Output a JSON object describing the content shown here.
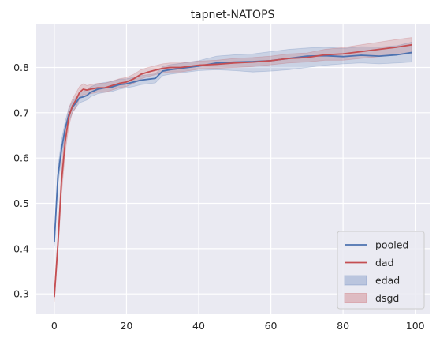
{
  "chart_data": {
    "type": "line",
    "title": "tapnet-NATOPS",
    "xlabel": "",
    "ylabel": "",
    "xlim": [
      -5,
      104
    ],
    "ylim": [
      0.255,
      0.895
    ],
    "x_ticks": [
      0,
      20,
      40,
      60,
      80,
      100
    ],
    "x_tick_labels": [
      "0",
      "20",
      "40",
      "60",
      "80",
      "100"
    ],
    "y_ticks": [
      0.3,
      0.4,
      0.5,
      0.6,
      0.7,
      0.8
    ],
    "y_tick_labels": [
      "0.3",
      "0.4",
      "0.5",
      "0.6",
      "0.7",
      "0.8"
    ],
    "grid": true,
    "legend_position": "lower-right",
    "background": "#eaeaf2",
    "series": [
      {
        "name": "pooled",
        "color": "#4c72b0",
        "x": [
          0,
          1,
          2,
          3,
          4,
          5,
          6,
          7,
          8,
          9,
          10,
          12,
          14,
          16,
          18,
          20,
          22,
          24,
          26,
          28,
          30,
          32,
          35,
          40,
          45,
          50,
          55,
          60,
          65,
          70,
          75,
          80,
          85,
          90,
          95,
          99
        ],
        "values": [
          0.415,
          0.56,
          0.62,
          0.665,
          0.695,
          0.712,
          0.722,
          0.733,
          0.735,
          0.738,
          0.745,
          0.752,
          0.755,
          0.757,
          0.762,
          0.764,
          0.768,
          0.772,
          0.774,
          0.776,
          0.792,
          0.795,
          0.798,
          0.803,
          0.81,
          0.812,
          0.813,
          0.815,
          0.82,
          0.825,
          0.826,
          0.824,
          0.827,
          0.825,
          0.828,
          0.833
        ]
      },
      {
        "name": "dad",
        "color": "#c44e52",
        "x": [
          0,
          1,
          2,
          3,
          4,
          5,
          6,
          7,
          8,
          9,
          10,
          12,
          14,
          16,
          18,
          20,
          22,
          24,
          26,
          28,
          30,
          32,
          35,
          40,
          45,
          50,
          55,
          60,
          65,
          70,
          75,
          80,
          85,
          90,
          95,
          99
        ],
        "values": [
          0.293,
          0.41,
          0.55,
          0.635,
          0.69,
          0.715,
          0.728,
          0.745,
          0.752,
          0.75,
          0.752,
          0.755,
          0.755,
          0.76,
          0.765,
          0.768,
          0.775,
          0.785,
          0.79,
          0.794,
          0.798,
          0.8,
          0.8,
          0.805,
          0.807,
          0.81,
          0.812,
          0.815,
          0.82,
          0.822,
          0.828,
          0.83,
          0.835,
          0.84,
          0.845,
          0.85
        ]
      }
    ],
    "bands": [
      {
        "name": "edad",
        "color": "#4c72b0",
        "opacity": 0.2,
        "x": [
          0,
          1,
          2,
          3,
          4,
          5,
          6,
          7,
          8,
          9,
          10,
          12,
          14,
          16,
          18,
          20,
          22,
          24,
          26,
          28,
          30,
          32,
          35,
          40,
          45,
          50,
          55,
          60,
          65,
          70,
          75,
          80,
          85,
          90,
          95,
          99
        ],
        "lower": [
          0.405,
          0.54,
          0.6,
          0.65,
          0.68,
          0.7,
          0.712,
          0.722,
          0.725,
          0.728,
          0.735,
          0.742,
          0.745,
          0.747,
          0.752,
          0.755,
          0.758,
          0.762,
          0.764,
          0.766,
          0.782,
          0.785,
          0.788,
          0.793,
          0.795,
          0.793,
          0.79,
          0.792,
          0.795,
          0.8,
          0.805,
          0.808,
          0.81,
          0.808,
          0.81,
          0.812
        ],
        "upper": [
          0.425,
          0.58,
          0.64,
          0.68,
          0.71,
          0.725,
          0.734,
          0.744,
          0.747,
          0.75,
          0.757,
          0.764,
          0.767,
          0.769,
          0.774,
          0.775,
          0.778,
          0.782,
          0.784,
          0.786,
          0.802,
          0.806,
          0.809,
          0.815,
          0.825,
          0.828,
          0.83,
          0.835,
          0.84,
          0.843,
          0.845,
          0.842,
          0.846,
          0.845,
          0.848,
          0.856
        ]
      },
      {
        "name": "dsgd",
        "color": "#c44e52",
        "opacity": 0.2,
        "x": [
          0,
          1,
          2,
          3,
          4,
          5,
          6,
          7,
          8,
          9,
          10,
          12,
          14,
          16,
          18,
          20,
          22,
          24,
          26,
          28,
          30,
          32,
          35,
          40,
          45,
          50,
          55,
          60,
          65,
          70,
          75,
          80,
          85,
          90,
          95,
          99
        ],
        "lower": [
          0.283,
          0.39,
          0.52,
          0.61,
          0.67,
          0.7,
          0.712,
          0.732,
          0.74,
          0.74,
          0.742,
          0.745,
          0.745,
          0.75,
          0.755,
          0.758,
          0.765,
          0.775,
          0.78,
          0.784,
          0.788,
          0.79,
          0.79,
          0.796,
          0.798,
          0.8,
          0.802,
          0.806,
          0.81,
          0.812,
          0.816,
          0.816,
          0.82,
          0.824,
          0.828,
          0.83
        ],
        "upper": [
          0.303,
          0.43,
          0.58,
          0.66,
          0.71,
          0.73,
          0.744,
          0.758,
          0.764,
          0.76,
          0.762,
          0.765,
          0.765,
          0.77,
          0.775,
          0.778,
          0.785,
          0.795,
          0.8,
          0.804,
          0.808,
          0.81,
          0.81,
          0.814,
          0.816,
          0.82,
          0.822,
          0.825,
          0.83,
          0.832,
          0.84,
          0.844,
          0.85,
          0.856,
          0.862,
          0.866
        ]
      }
    ]
  }
}
